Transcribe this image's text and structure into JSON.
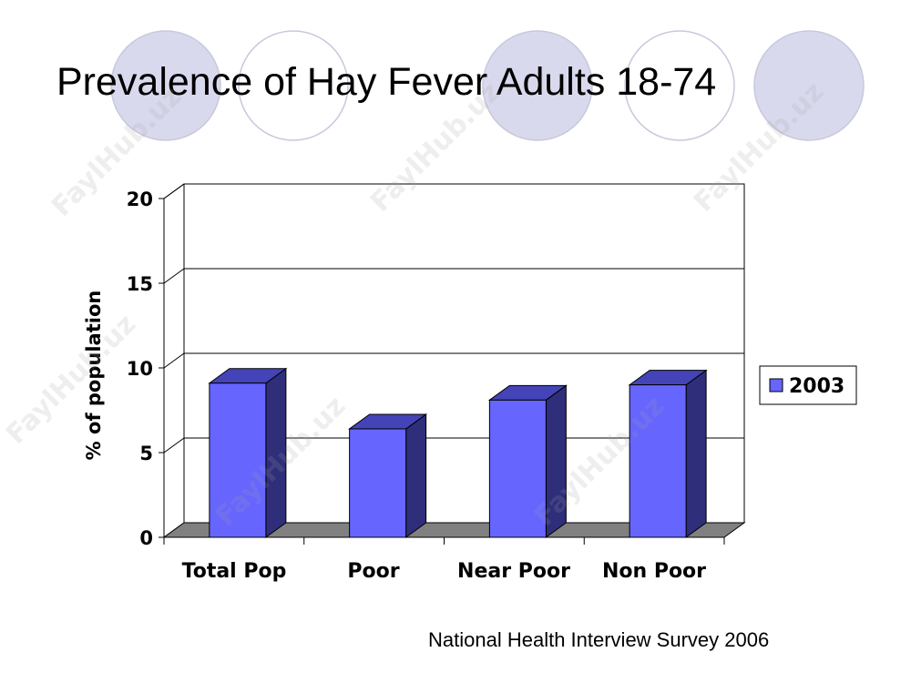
{
  "slide": {
    "title": "Prevalence of Hay Fever Adults 18-74",
    "source": "National Health Interview Survey 2006",
    "watermark": "FaylHub.uz"
  },
  "colors": {
    "bar_front": "#6666ff",
    "bar_side": "#2e2e7a",
    "bar_top": "#4444b8",
    "floor": "#808080",
    "decor_circle_fill": "#d9d9ee",
    "decor_circle_stroke": "#c8c8dd"
  },
  "chart_data": {
    "type": "bar",
    "categories": [
      "Total Pop",
      "Poor",
      "Near Poor",
      "Non Poor"
    ],
    "series": [
      {
        "name": "2003",
        "values": [
          9.1,
          6.4,
          8.1,
          9.0
        ]
      }
    ],
    "ylabel": "% of population",
    "ylim": [
      0,
      20
    ],
    "yticks": [
      "0",
      "5",
      "10",
      "15",
      "20"
    ],
    "grid": true,
    "legend": "right",
    "style": "3d-column"
  }
}
